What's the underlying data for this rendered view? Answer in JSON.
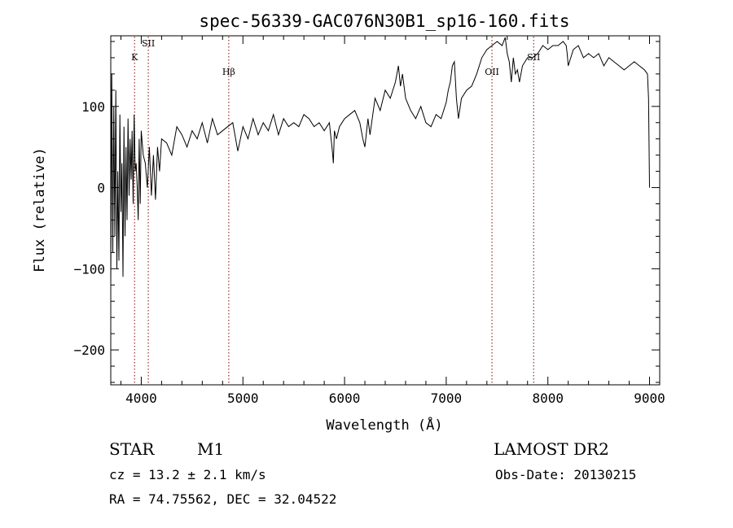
{
  "chart_data": {
    "type": "line",
    "title": "spec-56339-GAC076N30B1_sp16-160.fits",
    "xlabel": "Wavelength (Å)",
    "ylabel": "Flux (relative)",
    "xlim": [
      3700,
      9100
    ],
    "ylim": [
      -243,
      187
    ],
    "x_ticks": [
      4000,
      5000,
      6000,
      7000,
      8000,
      9000
    ],
    "y_ticks": [
      -200,
      -100,
      0,
      100
    ],
    "tick_labels": {
      "x": [
        "4000",
        "5000",
        "6000",
        "7000",
        "8000",
        "9000"
      ],
      "y": [
        "−200",
        "−100",
        "0",
        "100"
      ]
    },
    "grid": false,
    "series": [
      {
        "x": [
          3700,
          3710,
          3720,
          3730,
          3740,
          3750,
          3760,
          3770,
          3780,
          3790,
          3800,
          3810,
          3820,
          3830,
          3840,
          3850,
          3860,
          3870,
          3880,
          3890,
          3900,
          3910,
          3920,
          3930,
          3940,
          3950,
          3960,
          3970,
          3980,
          3990,
          4000,
          4020,
          4040,
          4060,
          4080,
          4100,
          4120,
          4140,
          4160,
          4180,
          4200,
          4250,
          4300,
          4350,
          4400,
          4450,
          4500,
          4550,
          4600,
          4650,
          4700,
          4750,
          4800,
          4850,
          4900,
          4950,
          5000,
          5050,
          5100,
          5150,
          5200,
          5250,
          5300,
          5350,
          5400,
          5450,
          5500,
          5550,
          5600,
          5650,
          5700,
          5750,
          5800,
          5850,
          5880,
          5890,
          5900,
          5920,
          5950,
          6000,
          6050,
          6100,
          6150,
          6180,
          6200,
          6230,
          6250,
          6300,
          6350,
          6400,
          6450,
          6500,
          6530,
          6550,
          6570,
          6600,
          6650,
          6700,
          6750,
          6800,
          6850,
          6900,
          6950,
          7000,
          7020,
          7040,
          7060,
          7080,
          7100,
          7120,
          7150,
          7200,
          7250,
          7300,
          7350,
          7400,
          7450,
          7500,
          7550,
          7580,
          7600,
          7620,
          7640,
          7660,
          7680,
          7700,
          7720,
          7750,
          7800,
          7850,
          7900,
          7950,
          8000,
          8050,
          8100,
          8150,
          8180,
          8190,
          8200,
          8250,
          8300,
          8350,
          8400,
          8450,
          8500,
          8550,
          8600,
          8650,
          8700,
          8750,
          8800,
          8850,
          8900,
          8950,
          8980,
          8990,
          9000
        ],
        "values": [
          -120,
          140,
          -80,
          100,
          -60,
          120,
          -100,
          20,
          -90,
          90,
          -30,
          30,
          -110,
          75,
          -60,
          50,
          -40,
          85,
          -10,
          60,
          10,
          70,
          -20,
          90,
          20,
          30,
          0,
          -40,
          60,
          -20,
          70,
          40,
          30,
          0,
          50,
          -10,
          40,
          -15,
          50,
          20,
          60,
          55,
          40,
          75,
          65,
          50,
          70,
          60,
          80,
          55,
          85,
          65,
          70,
          75,
          80,
          45,
          75,
          60,
          85,
          65,
          80,
          70,
          90,
          65,
          85,
          75,
          80,
          75,
          90,
          85,
          75,
          80,
          70,
          80,
          45,
          30,
          70,
          60,
          75,
          85,
          90,
          95,
          80,
          60,
          50,
          85,
          65,
          110,
          95,
          120,
          110,
          130,
          150,
          125,
          140,
          110,
          95,
          85,
          100,
          80,
          75,
          90,
          85,
          105,
          120,
          130,
          150,
          155,
          110,
          85,
          110,
          120,
          125,
          140,
          160,
          170,
          175,
          180,
          175,
          185,
          165,
          155,
          130,
          160,
          140,
          145,
          130,
          150,
          160,
          160,
          165,
          175,
          170,
          175,
          175,
          180,
          175,
          165,
          150,
          170,
          175,
          160,
          165,
          160,
          165,
          150,
          160,
          155,
          150,
          145,
          150,
          155,
          150,
          145,
          140,
          110,
          0
        ]
      }
    ],
    "lines": [
      {
        "label": "K",
        "x": 3934,
        "label_y": 157
      },
      {
        "label": "SII",
        "x": 4069,
        "label_y": 174
      },
      {
        "label": "Hβ",
        "x": 4861,
        "label_y": 139
      },
      {
        "label": "OII",
        "x": 7450,
        "label_y": 139
      },
      {
        "label": "SII",
        "x": 7860,
        "label_y": 157
      }
    ]
  },
  "info": {
    "object_type": "STAR",
    "subclass": "M1",
    "survey": "LAMOST DR2",
    "cz": "cz = 13.2 ± 2.1 km/s",
    "obs_date": "Obs-Date: 20130215",
    "radec": "RA =  74.75562, DEC =  32.04522"
  },
  "colors": {
    "spectrum": "#000000",
    "line_marker": "#8b0000",
    "axes": "#000000"
  }
}
